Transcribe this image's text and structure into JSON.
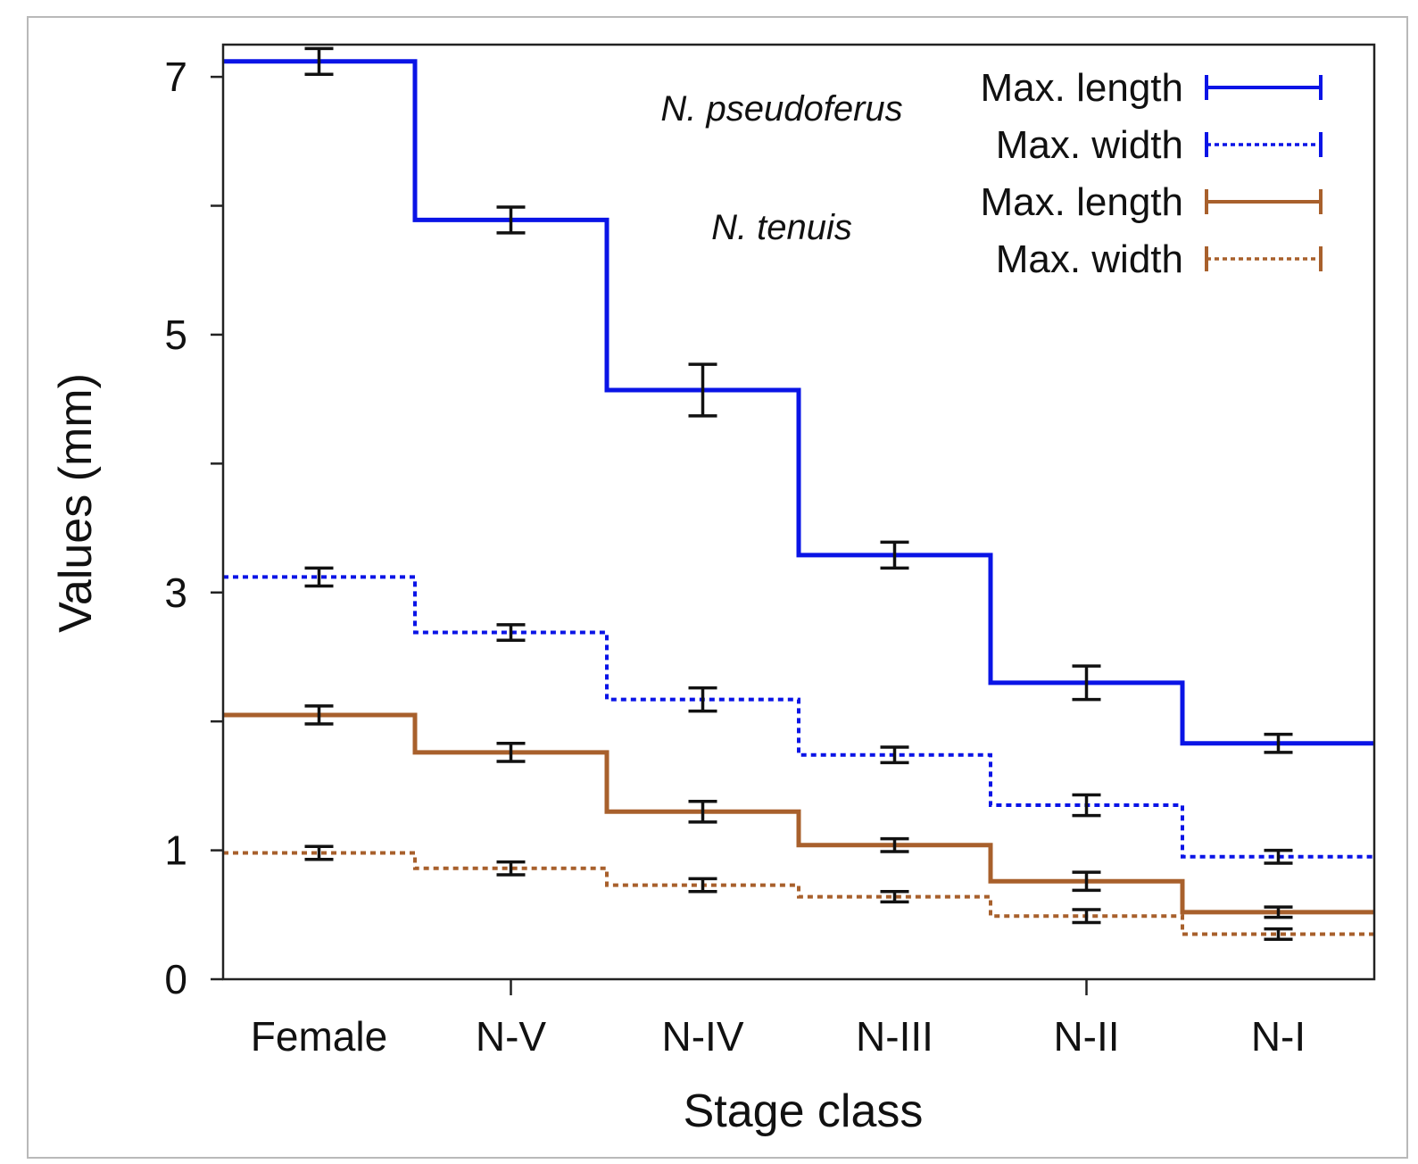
{
  "chart_data": {
    "type": "line",
    "style": "step",
    "title": "",
    "xlabel": "Stage class",
    "ylabel": "Values (mm)",
    "categories": [
      "Female",
      "N-V",
      "N-IV",
      "N-III",
      "N-II",
      "N-I"
    ],
    "yticks": [
      0,
      1,
      3,
      5,
      7
    ],
    "ytick_minor": [
      2,
      4,
      6
    ],
    "ylim": [
      0,
      7.25
    ],
    "annotations": [
      "N. pseudoferus",
      "N. tenuis"
    ],
    "legend_position": "top-right",
    "series": [
      {
        "name": "Max. length",
        "species": "N. pseudoferus",
        "color": "#0a14e6",
        "dash": "solid",
        "values": [
          7.12,
          5.89,
          4.57,
          3.29,
          2.3,
          1.83
        ],
        "errors": [
          0.1,
          0.1,
          0.2,
          0.1,
          0.13,
          0.07
        ]
      },
      {
        "name": "Max. width",
        "species": "N. pseudoferus",
        "color": "#0a14e6",
        "dash": "dotted",
        "values": [
          3.12,
          2.69,
          2.17,
          1.74,
          1.35,
          0.95
        ],
        "errors": [
          0.07,
          0.06,
          0.09,
          0.06,
          0.08,
          0.05
        ]
      },
      {
        "name": "Max. length",
        "species": "N. tenuis",
        "color": "#a8602c",
        "dash": "solid",
        "values": [
          2.05,
          1.76,
          1.3,
          1.04,
          0.76,
          0.52
        ],
        "errors": [
          0.07,
          0.07,
          0.08,
          0.05,
          0.07,
          0.04
        ]
      },
      {
        "name": "Max. width",
        "species": "N. tenuis",
        "color": "#a8602c",
        "dash": "dotted",
        "values": [
          0.98,
          0.86,
          0.73,
          0.64,
          0.49,
          0.35
        ],
        "errors": [
          0.05,
          0.05,
          0.05,
          0.04,
          0.05,
          0.04
        ]
      }
    ]
  }
}
